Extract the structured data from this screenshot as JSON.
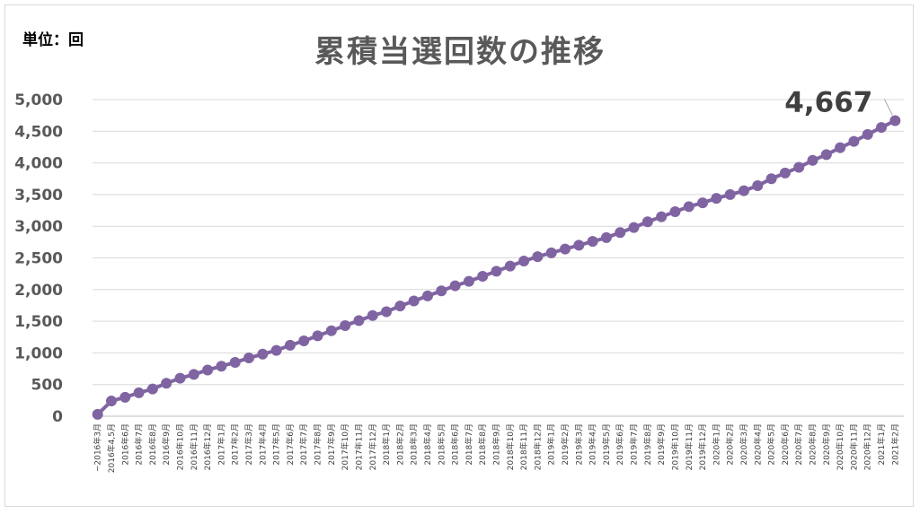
{
  "unit_label": "単位：回",
  "chart_data": {
    "type": "line",
    "title": "累積当選回数の推移",
    "xlabel": "",
    "ylabel": "",
    "ylim": [
      0,
      5000
    ],
    "yticks": [
      0,
      500,
      1000,
      1500,
      2000,
      2500,
      3000,
      3500,
      4000,
      4500,
      5000
    ],
    "ytick_labels": [
      "0",
      "500",
      "1,000",
      "1,500",
      "2,000",
      "2,500",
      "3,000",
      "3,500",
      "4,000",
      "4,500",
      "5,000"
    ],
    "grid": true,
    "legend": "none",
    "color": "#8064a2",
    "categories": [
      "~2016年3月",
      "2016年4,5月",
      "2016年6月",
      "2016年7月",
      "2016年8月",
      "2016年9月",
      "2016年10月",
      "2016年11月",
      "2016年12月",
      "2017年1月",
      "2017年2月",
      "2017年3月",
      "2017年4月",
      "2017年5月",
      "2017年6月",
      "2017年7月",
      "2017年8月",
      "2017年9月",
      "2017年10月",
      "2017年11月",
      "2017年12月",
      "2018年1月",
      "2018年2月",
      "2018年3月",
      "2018年4月",
      "2018年5月",
      "2018年6月",
      "2018年7月",
      "2018年8月",
      "2018年9月",
      "2018年10月",
      "2018年11月",
      "2018年12月",
      "2019年1月",
      "2019年2月",
      "2019年3月",
      "2019年4月",
      "2019年5月",
      "2019年6月",
      "2019年7月",
      "2019年8月",
      "2019年9月",
      "2019年10月",
      "2019年11月",
      "2019年12月",
      "2020年1月",
      "2020年2月",
      "2020年3月",
      "2020年4月",
      "2020年5月",
      "2020年6月",
      "2020年7月",
      "2020年8月",
      "2020年9月",
      "2020年10月",
      "2020年11月",
      "2020年12月",
      "2021年1月",
      "2021年2月"
    ],
    "values": [
      30,
      240,
      300,
      370,
      430,
      520,
      600,
      660,
      730,
      790,
      850,
      920,
      980,
      1040,
      1120,
      1190,
      1270,
      1350,
      1430,
      1510,
      1590,
      1650,
      1740,
      1820,
      1900,
      1980,
      2060,
      2130,
      2210,
      2290,
      2370,
      2450,
      2520,
      2580,
      2640,
      2700,
      2760,
      2820,
      2900,
      2980,
      3070,
      3150,
      3230,
      3310,
      3370,
      3440,
      3500,
      3560,
      3640,
      3750,
      3840,
      3930,
      4040,
      4130,
      4240,
      4340,
      4450,
      4560,
      4667
    ],
    "data_label": "4,667"
  }
}
